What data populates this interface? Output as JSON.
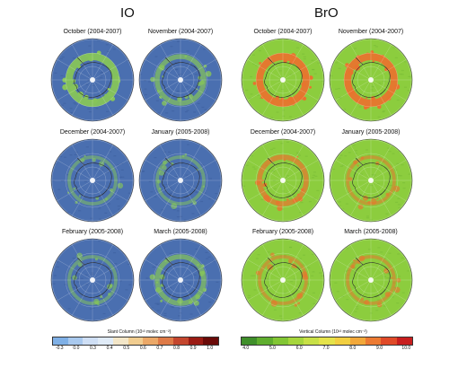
{
  "panels": [
    {
      "id": "io",
      "title": "IO",
      "maps": [
        {
          "label": "October (2004-2007)",
          "enhanced": "strong"
        },
        {
          "label": "November (2004-2007)",
          "enhanced": "moderate"
        },
        {
          "label": "December (2004-2007)",
          "enhanced": "weak"
        },
        {
          "label": "January (2005-2008)",
          "enhanced": "weak"
        },
        {
          "label": "February (2005-2008)",
          "enhanced": "weak"
        },
        {
          "label": "March (2005-2008)",
          "enhanced": "moderate"
        }
      ],
      "colorbar": {
        "title": "Slant Column (10¹³ molec cm⁻²)",
        "ticks": [
          "-0.3",
          "0.0",
          "0.3",
          "0.4",
          "0.5",
          "0.6",
          "0.7",
          "0.8",
          "0.9",
          "1.0"
        ],
        "colors": [
          "#7fb0e6",
          "#a9c9ee",
          "#cfdff5",
          "#e0ebf7",
          "#f3e6c8",
          "#f1cd90",
          "#eba868",
          "#de7a47",
          "#c4462e",
          "#9b1b14",
          "#6a0a08"
        ]
      },
      "colors": {
        "base": "#4a6fb0",
        "ocean_dark": "#39589a",
        "high": "#86c45a"
      }
    },
    {
      "id": "bro",
      "title": "BrO",
      "maps": [
        {
          "label": "October (2004-2007)",
          "enhanced": "strong"
        },
        {
          "label": "November (2004-2007)",
          "enhanced": "strong"
        },
        {
          "label": "December (2004-2007)",
          "enhanced": "moderate"
        },
        {
          "label": "January (2005-2008)",
          "enhanced": "weak"
        },
        {
          "label": "February (2005-2008)",
          "enhanced": "weak"
        },
        {
          "label": "March (2005-2008)",
          "enhanced": "weak"
        }
      ],
      "colorbar": {
        "title": "Vertical Column (10¹³ molec cm⁻²)",
        "ticks": [
          "4.0",
          "5.0",
          "6.0",
          "7.0",
          "8.0",
          "9.0",
          "10.0"
        ],
        "colors": [
          "#3f8f2a",
          "#5fae2e",
          "#82c634",
          "#a6d63c",
          "#c8e046",
          "#e5e34a",
          "#f2cf40",
          "#f2a83a",
          "#ec7a32",
          "#e04a28",
          "#c81e1e"
        ]
      },
      "colors": {
        "base": "#8ccd3e",
        "ocean_dark": "#74b936",
        "high": "#e8742e"
      }
    }
  ]
}
